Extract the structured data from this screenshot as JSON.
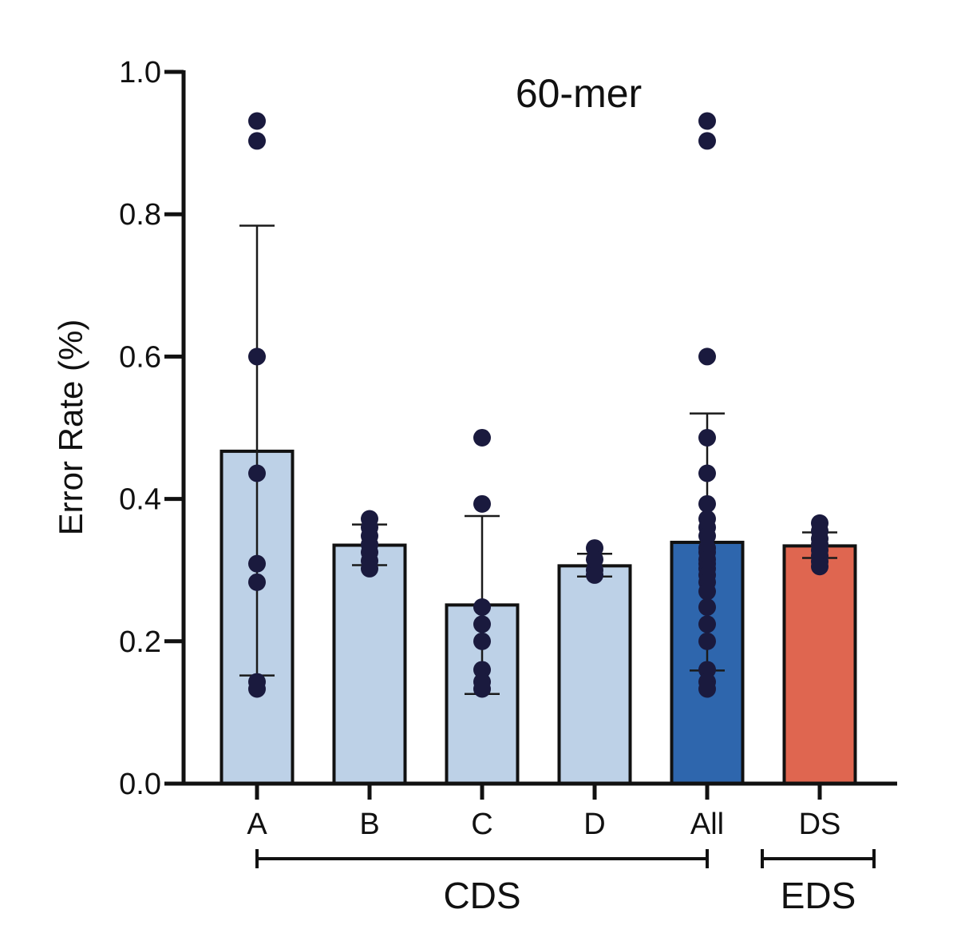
{
  "chart_data": {
    "type": "bar",
    "title": "60-mer",
    "xlabel": "",
    "ylabel": "Error Rate (%)",
    "ylim": [
      0,
      1.0
    ],
    "yticks": [
      "0.0",
      "0.2",
      "0.4",
      "0.6",
      "0.8",
      "1.0"
    ],
    "categories": [
      "A",
      "B",
      "C",
      "D",
      "All",
      "DS"
    ],
    "values": [
      0.467,
      0.335,
      0.251,
      0.306,
      0.339,
      0.334
    ],
    "error_low": [
      0.152,
      0.307,
      0.126,
      0.291,
      0.159,
      0.317
    ],
    "error_high": [
      0.784,
      0.364,
      0.376,
      0.323,
      0.52,
      0.353
    ],
    "bar_colors": [
      "#bdd1e7",
      "#bdd1e7",
      "#bdd1e7",
      "#bdd1e7",
      "#2e66ad",
      "#df6650"
    ],
    "point_color": "#1a1a3e",
    "points": [
      [
        0.931,
        0.903,
        0.6,
        0.436,
        0.309,
        0.283,
        0.143,
        0.133
      ],
      [
        0.372,
        0.36,
        0.348,
        0.336,
        0.325,
        0.313,
        0.302
      ],
      [
        0.486,
        0.393,
        0.248,
        0.224,
        0.2,
        0.16,
        0.143,
        0.133
      ],
      [
        0.331,
        0.315,
        0.3,
        0.293
      ],
      [
        0.931,
        0.903,
        0.6,
        0.486,
        0.436,
        0.393,
        0.372,
        0.36,
        0.348,
        0.331,
        0.325,
        0.315,
        0.309,
        0.302,
        0.293,
        0.283,
        0.27,
        0.248,
        0.224,
        0.2,
        0.16,
        0.143,
        0.133
      ],
      [
        0.366,
        0.355,
        0.344,
        0.336,
        0.328,
        0.32,
        0.312,
        0.305
      ]
    ],
    "groups": [
      {
        "label": "CDS",
        "from": 0,
        "to": 4
      },
      {
        "label": "EDS",
        "from": 5,
        "to": 5
      }
    ]
  }
}
